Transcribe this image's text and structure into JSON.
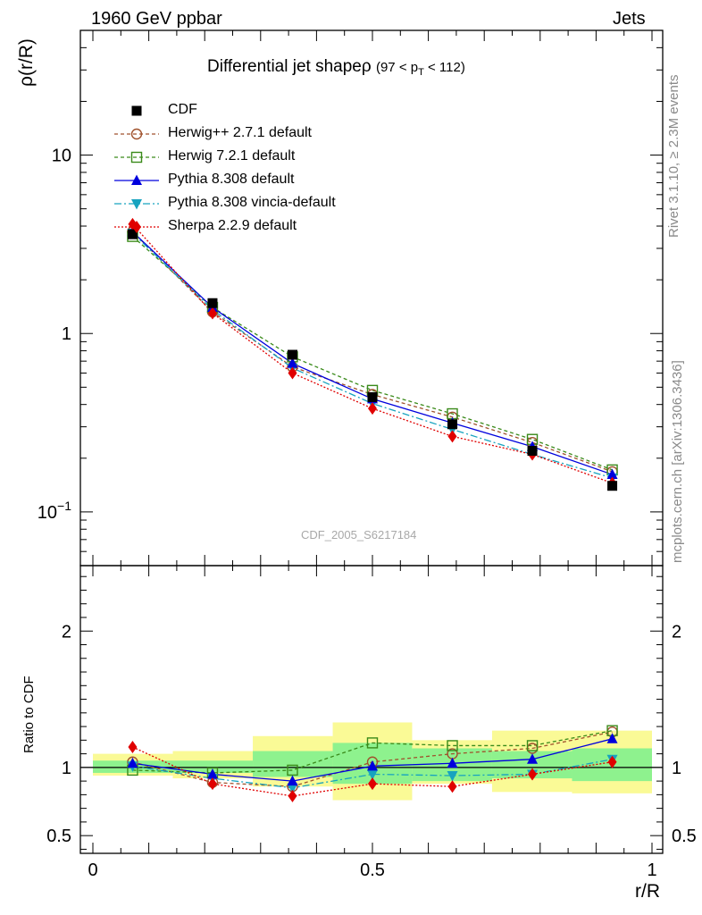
{
  "header": {
    "left": "1960 GeV ppbar",
    "right": "Jets"
  },
  "side_texts": {
    "rivet": "Rivet 3.1.10, ≥ 2.3M events",
    "mcplots": "mcplots.cern.ch [arXiv:1306.3436]"
  },
  "plot_title": {
    "main": "Differential jet shapeρ",
    "sub": "(97 < p",
    "sub_index": "T",
    "sub_end": " < 112)"
  },
  "watermark": "CDF_2005_S6217184",
  "colors": {
    "cdf": "#000000",
    "herwigpp": "#a0522d",
    "herwig7": "#3a8a1a",
    "pythia": "#0000dd",
    "vincia": "#17a3bf",
    "sherpa": "#e00000",
    "band_inner": "#8ef28e",
    "band_outer": "#fafa96"
  },
  "chart_data": [
    {
      "type": "line",
      "ylabel": "ρ(r/R)",
      "yscale": "log",
      "ylim": [
        0.05,
        50
      ],
      "xlim": [
        -0.02,
        1.02
      ],
      "y_tick_labels": [
        "10−1",
        "1",
        "10"
      ],
      "x": [
        0.071,
        0.214,
        0.357,
        0.5,
        0.643,
        0.786,
        0.929
      ],
      "series": [
        {
          "name": "CDF",
          "values": [
            3.6,
            1.48,
            0.76,
            0.44,
            0.31,
            0.22,
            0.14
          ]
        },
        {
          "name": "Herwig++ 2.7.1 default",
          "values": [
            3.72,
            1.32,
            0.65,
            0.455,
            0.34,
            0.245,
            0.168
          ]
        },
        {
          "name": "Herwig 7.2.1 default",
          "values": [
            3.5,
            1.4,
            0.74,
            0.48,
            0.355,
            0.255,
            0.172
          ]
        },
        {
          "name": "Pythia 8.308 default",
          "values": [
            3.72,
            1.4,
            0.68,
            0.43,
            0.315,
            0.232,
            0.162
          ]
        },
        {
          "name": "Pythia 8.308 vincia-default",
          "values": [
            3.65,
            1.36,
            0.64,
            0.405,
            0.29,
            0.21,
            0.155
          ]
        },
        {
          "name": "Sherpa 2.2.9 default",
          "values": [
            4.1,
            1.3,
            0.6,
            0.38,
            0.265,
            0.21,
            0.145
          ]
        }
      ]
    },
    {
      "type": "line",
      "ylabel": "Ratio to CDF",
      "xlabel": "r/R",
      "ylim": [
        0.37,
        2.48
      ],
      "xlim": [
        -0.02,
        1.02
      ],
      "y_tick_labels": [
        "0.5",
        "1",
        "2"
      ],
      "x_tick_labels": [
        "0",
        "0.5",
        "1"
      ],
      "x": [
        0.071,
        0.214,
        0.357,
        0.5,
        0.643,
        0.786,
        0.929
      ],
      "reference_line": 1,
      "bins": [
        {
          "lo": 0.0,
          "hi": 0.143,
          "inner": [
            0.96,
            1.05
          ],
          "outer": [
            0.94,
            1.1
          ]
        },
        {
          "lo": 0.143,
          "hi": 0.286,
          "inner": [
            0.96,
            1.05
          ],
          "outer": [
            0.92,
            1.12
          ]
        },
        {
          "lo": 0.286,
          "hi": 0.429,
          "inner": [
            0.93,
            1.12
          ],
          "outer": [
            0.86,
            1.23
          ]
        },
        {
          "lo": 0.429,
          "hi": 0.571,
          "inner": [
            0.88,
            1.18
          ],
          "outer": [
            0.76,
            1.33
          ]
        },
        {
          "lo": 0.571,
          "hi": 0.714,
          "inner": [
            0.9,
            1.14
          ],
          "outer": [
            0.88,
            1.2
          ]
        },
        {
          "lo": 0.714,
          "hi": 0.857,
          "inner": [
            0.92,
            1.12
          ],
          "outer": [
            0.82,
            1.27
          ]
        },
        {
          "lo": 0.857,
          "hi": 1.0,
          "inner": [
            0.9,
            1.14
          ],
          "outer": [
            0.81,
            1.27
          ]
        }
      ],
      "series": [
        {
          "name": "Herwig++ 2.7.1 default",
          "values": [
            1.04,
            0.89,
            0.86,
            1.04,
            1.1,
            1.14,
            1.26
          ]
        },
        {
          "name": "Herwig 7.2.1 default",
          "values": [
            0.98,
            0.96,
            0.98,
            1.18,
            1.16,
            1.16,
            1.27
          ]
        },
        {
          "name": "Pythia 8.308 default",
          "values": [
            1.03,
            0.95,
            0.9,
            1.01,
            1.03,
            1.06,
            1.21
          ]
        },
        {
          "name": "Pythia 8.308 vincia-default",
          "values": [
            1.01,
            0.92,
            0.85,
            0.95,
            0.94,
            0.95,
            1.06
          ]
        },
        {
          "name": "Sherpa 2.2.9 default",
          "values": [
            1.15,
            0.88,
            0.79,
            0.88,
            0.86,
            0.95,
            1.04
          ]
        }
      ]
    }
  ]
}
